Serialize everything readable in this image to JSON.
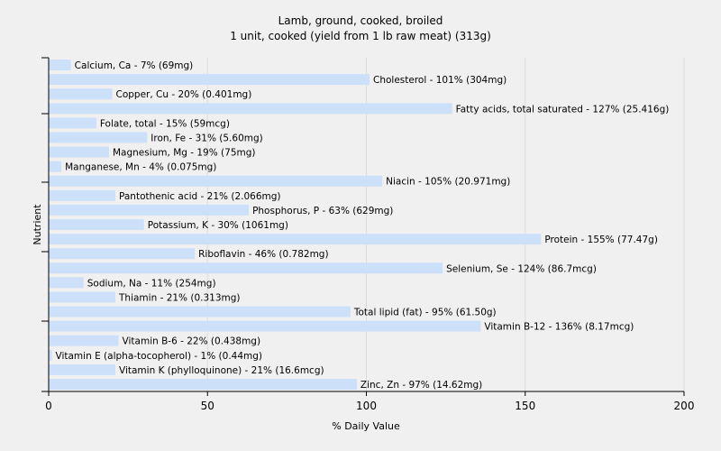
{
  "chart_data": {
    "type": "bar",
    "orientation": "horizontal",
    "title": "Lamb, ground, cooked, broiled",
    "subtitle": "1 unit, cooked (yield from 1 lb raw meat) (313g)",
    "xlabel": "% Daily Value",
    "ylabel": "Nutrient",
    "xlim": [
      0,
      200
    ],
    "xticks": [
      0,
      50,
      100,
      150,
      200
    ],
    "grid": true,
    "bar_color": "#cce0fa",
    "categories": [
      "Calcium, Ca",
      "Cholesterol",
      "Copper, Cu",
      "Fatty acids, total saturated",
      "Folate, total",
      "Iron, Fe",
      "Magnesium, Mg",
      "Manganese, Mn",
      "Niacin",
      "Pantothenic acid",
      "Phosphorus, P",
      "Potassium, K",
      "Protein",
      "Riboflavin",
      "Selenium, Se",
      "Sodium, Na",
      "Thiamin",
      "Total lipid (fat)",
      "Vitamin B-12",
      "Vitamin B-6",
      "Vitamin E (alpha-tocopherol)",
      "Vitamin K (phylloquinone)",
      "Zinc, Zn"
    ],
    "values": [
      7,
      101,
      20,
      127,
      15,
      31,
      19,
      4,
      105,
      21,
      63,
      30,
      155,
      46,
      124,
      11,
      21,
      95,
      136,
      22,
      1,
      21,
      97
    ],
    "labels": [
      "Calcium, Ca - 7% (69mg)",
      "Cholesterol - 101% (304mg)",
      "Copper, Cu - 20% (0.401mg)",
      "Fatty acids, total saturated - 127% (25.416g)",
      "Folate, total - 15% (59mcg)",
      "Iron, Fe - 31% (5.60mg)",
      "Magnesium, Mg - 19% (75mg)",
      "Manganese, Mn - 4% (0.075mg)",
      "Niacin - 105% (20.971mg)",
      "Pantothenic acid - 21% (2.066mg)",
      "Phosphorus, P - 63% (629mg)",
      "Potassium, K - 30% (1061mg)",
      "Protein - 155% (77.47g)",
      "Riboflavin - 46% (0.782mg)",
      "Selenium, Se - 124% (86.7mcg)",
      "Sodium, Na - 11% (254mg)",
      "Thiamin - 21% (0.313mg)",
      "Total lipid (fat) - 95% (61.50g)",
      "Vitamin B-12 - 136% (8.17mcg)",
      "Vitamin B-6 - 22% (0.438mg)",
      "Vitamin E (alpha-tocopherol) - 1% (0.44mg)",
      "Vitamin K (phylloquinone) - 21% (16.6mcg)",
      "Zinc, Zn - 97% (14.62mg)"
    ]
  }
}
